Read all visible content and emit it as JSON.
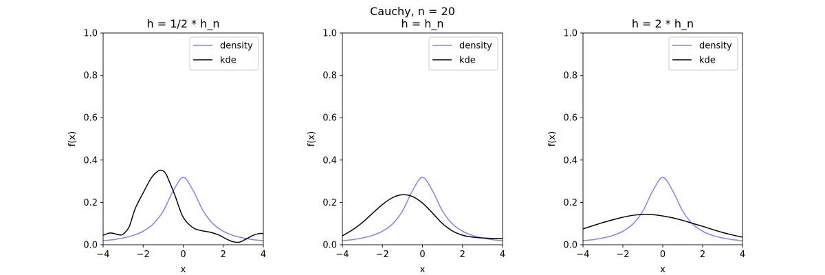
{
  "figure": {
    "suptitle": "Cauchy, n = 20"
  },
  "chart_data": [
    {
      "type": "line",
      "title": "h = 1/2 * h_n",
      "xlabel": "x",
      "ylabel": "f(x)",
      "xlim": [
        -4,
        4
      ],
      "ylim": [
        0,
        1.0
      ],
      "xticks": [
        -4,
        -2,
        0,
        2,
        4
      ],
      "yticks": [
        0.0,
        0.2,
        0.4,
        0.6,
        0.8,
        1.0
      ],
      "legend": {
        "position": "top-right"
      },
      "series": [
        {
          "name": "density",
          "color": "#8080ff",
          "x": [
            -4,
            -3.5,
            -3,
            -2.5,
            -2,
            -1.5,
            -1,
            -0.5,
            0,
            0.5,
            1,
            1.5,
            2,
            2.5,
            3,
            3.5,
            4
          ],
          "y": [
            0.019,
            0.024,
            0.032,
            0.044,
            0.064,
            0.098,
            0.159,
            0.255,
            0.318,
            0.255,
            0.159,
            0.098,
            0.064,
            0.044,
            0.032,
            0.024,
            0.019
          ]
        },
        {
          "name": "kde",
          "color": "#000000",
          "x": [
            -4,
            -3.7,
            -3.5,
            -3.2,
            -3,
            -2.7,
            -2.4,
            -2,
            -1.6,
            -1.3,
            -1.1,
            -0.9,
            -0.7,
            -0.4,
            -0.2,
            0,
            0.3,
            0.6,
            1,
            1.4,
            1.8,
            2.2,
            2.5,
            2.8,
            3.1,
            3.5,
            3.8,
            4
          ],
          "y": [
            0.045,
            0.055,
            0.054,
            0.047,
            0.05,
            0.085,
            0.17,
            0.245,
            0.315,
            0.345,
            0.352,
            0.34,
            0.3,
            0.23,
            0.175,
            0.13,
            0.095,
            0.075,
            0.065,
            0.058,
            0.045,
            0.025,
            0.014,
            0.012,
            0.025,
            0.045,
            0.053,
            0.053
          ]
        }
      ]
    },
    {
      "type": "line",
      "title": "h = h_n",
      "xlabel": "x",
      "ylabel": "f(x)",
      "xlim": [
        -4,
        4
      ],
      "ylim": [
        0,
        1.0
      ],
      "xticks": [
        -4,
        -2,
        0,
        2,
        4
      ],
      "yticks": [
        0.0,
        0.2,
        0.4,
        0.6,
        0.8,
        1.0
      ],
      "legend": {
        "position": "top-right"
      },
      "series": [
        {
          "name": "density",
          "color": "#8080ff",
          "x": [
            -4,
            -3.5,
            -3,
            -2.5,
            -2,
            -1.5,
            -1,
            -0.5,
            0,
            0.5,
            1,
            1.5,
            2,
            2.5,
            3,
            3.5,
            4
          ],
          "y": [
            0.019,
            0.024,
            0.032,
            0.044,
            0.064,
            0.098,
            0.159,
            0.255,
            0.318,
            0.255,
            0.159,
            0.098,
            0.064,
            0.044,
            0.032,
            0.024,
            0.019
          ]
        },
        {
          "name": "kde",
          "color": "#000000",
          "x": [
            -4,
            -3.5,
            -3,
            -2.5,
            -2,
            -1.5,
            -1,
            -0.5,
            0,
            0.5,
            1,
            1.5,
            2,
            2.5,
            3,
            3.5,
            4
          ],
          "y": [
            0.042,
            0.07,
            0.105,
            0.148,
            0.19,
            0.222,
            0.236,
            0.228,
            0.197,
            0.15,
            0.1,
            0.065,
            0.045,
            0.036,
            0.032,
            0.03,
            0.029
          ]
        }
      ]
    },
    {
      "type": "line",
      "title": "h = 2 * h_n",
      "xlabel": "x",
      "ylabel": "f(x)",
      "xlim": [
        -4,
        4
      ],
      "ylim": [
        0,
        1.0
      ],
      "xticks": [
        -4,
        -2,
        0,
        2,
        4
      ],
      "yticks": [
        0.0,
        0.2,
        0.4,
        0.6,
        0.8,
        1.0
      ],
      "legend": {
        "position": "top-right"
      },
      "series": [
        {
          "name": "density",
          "color": "#8080ff",
          "x": [
            -4,
            -3.5,
            -3,
            -2.5,
            -2,
            -1.5,
            -1,
            -0.5,
            0,
            0.5,
            1,
            1.5,
            2,
            2.5,
            3,
            3.5,
            4
          ],
          "y": [
            0.019,
            0.024,
            0.032,
            0.044,
            0.064,
            0.098,
            0.159,
            0.255,
            0.318,
            0.255,
            0.159,
            0.098,
            0.064,
            0.044,
            0.032,
            0.024,
            0.019
          ]
        },
        {
          "name": "kde",
          "color": "#000000",
          "x": [
            -4,
            -3.5,
            -3,
            -2.5,
            -2,
            -1.5,
            -1,
            -0.5,
            0,
            0.5,
            1,
            1.5,
            2,
            2.5,
            3,
            3.5,
            4
          ],
          "y": [
            0.075,
            0.09,
            0.105,
            0.118,
            0.13,
            0.139,
            0.143,
            0.142,
            0.136,
            0.127,
            0.115,
            0.101,
            0.087,
            0.072,
            0.058,
            0.046,
            0.036
          ]
        }
      ]
    }
  ]
}
